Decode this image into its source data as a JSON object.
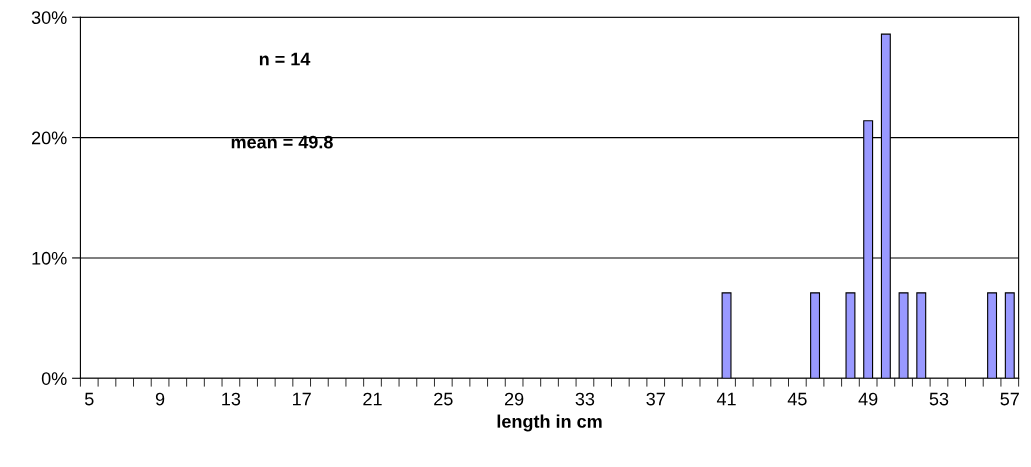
{
  "chart_data": {
    "type": "bar",
    "xlabel": "length in cm",
    "categories": [
      "5",
      null,
      null,
      null,
      "9",
      null,
      null,
      null,
      "13",
      null,
      null,
      null,
      "17",
      null,
      null,
      null,
      "21",
      null,
      null,
      null,
      "25",
      null,
      null,
      null,
      "29",
      null,
      null,
      null,
      "33",
      null,
      null,
      null,
      "37",
      null,
      null,
      null,
      "41",
      null,
      null,
      null,
      "45",
      null,
      null,
      null,
      "49",
      null,
      null,
      null,
      "53",
      null,
      null,
      null,
      "57"
    ],
    "values": [
      0,
      0,
      0,
      0,
      0,
      0,
      0,
      0,
      0,
      0,
      0,
      0,
      0,
      0,
      0,
      0,
      0,
      0,
      0,
      0,
      0,
      0,
      0,
      0,
      0,
      0,
      0,
      0,
      0,
      0,
      0,
      0,
      0,
      0,
      0,
      0,
      7.1,
      0,
      0,
      0,
      0,
      7.1,
      0,
      7.1,
      21.4,
      28.6,
      7.1,
      7.1,
      0,
      0,
      0,
      7.1,
      7.1
    ],
    "color": "#9999ff",
    "ylim": [
      0,
      30
    ],
    "yticks": [
      {
        "value": 0,
        "label": "0%"
      },
      {
        "value": 10,
        "label": "10%"
      },
      {
        "value": 20,
        "label": "20%"
      },
      {
        "value": 30,
        "label": "30%"
      }
    ],
    "grid": "y",
    "annotations": [
      "n = 14",
      "mean = 49.8"
    ]
  }
}
